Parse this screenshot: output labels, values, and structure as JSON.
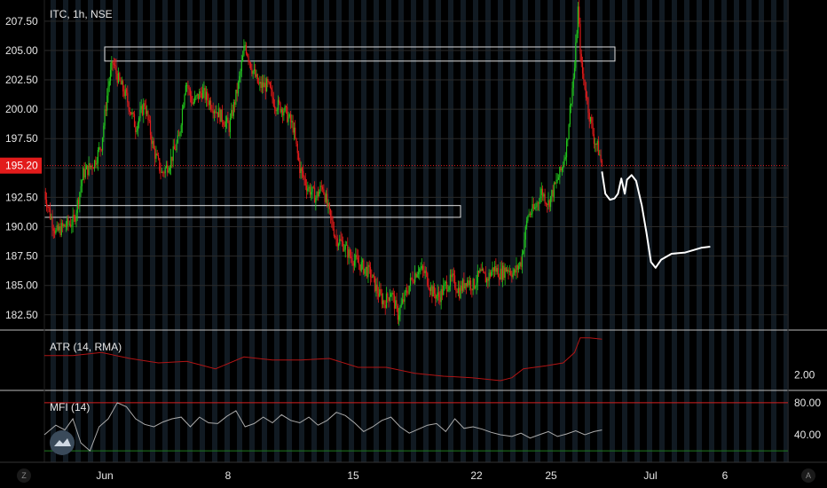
{
  "symbol": {
    "name": "ITC, 1h, NSE"
  },
  "price": {
    "last": "195.20",
    "last_value": 195.2
  },
  "axes": {
    "price_ticks": [
      207.5,
      205,
      202.5,
      200,
      197.5,
      195,
      192.5,
      190,
      187.5,
      185,
      182.5
    ],
    "price_tick_labels": [
      "207.50",
      "205.00",
      "202.50",
      "200.00",
      "197.50",
      "",
      "192.50",
      "190.00",
      "187.50",
      "185.00",
      "182.50"
    ],
    "price_range": [
      181.2,
      209.3
    ],
    "x_labels": [
      "Jun",
      "8",
      "15",
      "22",
      "25",
      "Jul",
      "6"
    ]
  },
  "indicators": {
    "atr": {
      "label": "ATR (14, RMA)",
      "tick_labels": [
        "2.00"
      ],
      "tick_values": [
        2.0
      ],
      "range": [
        1.3,
        4.6
      ]
    },
    "mfi": {
      "label": "MFI (14)",
      "tick_labels": [
        "80.00",
        "40.00"
      ],
      "tick_values": [
        80,
        40
      ],
      "range": [
        8,
        92
      ],
      "upper_band": 80,
      "lower_band": 20
    }
  },
  "zones": [
    {
      "name": "supply-zone",
      "from": 204.1,
      "to": 205.3
    },
    {
      "name": "demand-zone",
      "from": 190.8,
      "to": 191.8
    }
  ],
  "colors": {
    "up": "#22c41e",
    "down": "#e21b1b",
    "atr": "#b01515",
    "mfi": "#aaaaaa",
    "price_line": "#e21b1b",
    "upper_band": "#d42020",
    "lower_band": "#1f7a1f",
    "grid": "#2a2a2a",
    "separator": "#bbbbbb",
    "zone": "#dddddd"
  },
  "buttons": {
    "zoom": "Z",
    "auto": "A"
  },
  "chart_data": {
    "type": "candlestick",
    "title": "ITC, 1h, NSE",
    "ylim": [
      181.2,
      209.3
    ],
    "x": [
      "Jun",
      "8",
      "15",
      "22",
      "25",
      "Jul",
      "6"
    ],
    "price_path": [
      [
        0,
        193.0
      ],
      [
        5,
        191.0
      ],
      [
        10,
        189.5
      ],
      [
        17,
        190.0
      ],
      [
        26,
        190.5
      ],
      [
        34,
        194.5
      ],
      [
        44,
        195.5
      ],
      [
        50,
        197.0
      ],
      [
        56,
        202.0
      ],
      [
        60,
        204.0
      ],
      [
        65,
        202.5
      ],
      [
        72,
        201.0
      ],
      [
        80,
        198.5
      ],
      [
        88,
        200.5
      ],
      [
        96,
        196.5
      ],
      [
        103,
        194.5
      ],
      [
        110,
        195.5
      ],
      [
        118,
        197.5
      ],
      [
        124,
        202.5
      ],
      [
        130,
        200.5
      ],
      [
        138,
        201.5
      ],
      [
        146,
        200.5
      ],
      [
        154,
        199.5
      ],
      [
        162,
        198.5
      ],
      [
        170,
        202.0
      ],
      [
        176,
        205.5
      ],
      [
        182,
        203.5
      ],
      [
        188,
        202.0
      ],
      [
        196,
        202.0
      ],
      [
        202,
        200.5
      ],
      [
        210,
        200.0
      ],
      [
        218,
        198.5
      ],
      [
        224,
        195.0
      ],
      [
        230,
        193.5
      ],
      [
        238,
        192.5
      ],
      [
        244,
        193.5
      ],
      [
        250,
        191.0
      ],
      [
        256,
        189.0
      ],
      [
        262,
        188.5
      ],
      [
        268,
        187.5
      ],
      [
        274,
        187.0
      ],
      [
        280,
        186.5
      ],
      [
        286,
        186.0
      ],
      [
        292,
        184.5
      ],
      [
        298,
        183.5
      ],
      [
        304,
        184.5
      ],
      [
        310,
        182.5
      ],
      [
        316,
        184.0
      ],
      [
        322,
        185.5
      ],
      [
        328,
        186.5
      ],
      [
        334,
        186.0
      ],
      [
        340,
        184.5
      ],
      [
        346,
        184.0
      ],
      [
        352,
        185.0
      ],
      [
        358,
        185.5
      ],
      [
        364,
        184.5
      ],
      [
        370,
        185.5
      ],
      [
        376,
        185.0
      ],
      [
        382,
        186.0
      ],
      [
        388,
        185.5
      ],
      [
        394,
        186.5
      ],
      [
        400,
        186.0
      ],
      [
        406,
        186.5
      ],
      [
        412,
        186.0
      ],
      [
        418,
        187.0
      ],
      [
        424,
        191.0
      ],
      [
        430,
        191.5
      ],
      [
        436,
        193.0
      ],
      [
        442,
        192.0
      ],
      [
        448,
        193.5
      ],
      [
        454,
        195.0
      ],
      [
        458,
        197.0
      ],
      [
        462,
        201.0
      ],
      [
        465,
        203.5
      ],
      [
        468,
        208.5
      ],
      [
        471,
        203.5
      ],
      [
        474,
        202.0
      ],
      [
        478,
        199.5
      ],
      [
        482,
        197.5
      ],
      [
        486,
        196.5
      ],
      [
        489,
        195.2
      ]
    ],
    "projection_path": [
      [
        489,
        194.7
      ],
      [
        492,
        192.8
      ],
      [
        496,
        192.3
      ],
      [
        500,
        192.4
      ],
      [
        503,
        192.8
      ],
      [
        506,
        194.1
      ],
      [
        509,
        192.8
      ],
      [
        511,
        194.0
      ],
      [
        515,
        194.4
      ],
      [
        519,
        193.9
      ],
      [
        524,
        191.8
      ],
      [
        528,
        189.5
      ],
      [
        532,
        187.0
      ],
      [
        536,
        186.5
      ],
      [
        541,
        187.2
      ],
      [
        550,
        187.7
      ],
      [
        562,
        187.8
      ],
      [
        576,
        188.2
      ],
      [
        584,
        188.3
      ]
    ],
    "atr_series": [
      [
        0,
        3.3
      ],
      [
        25,
        3.3
      ],
      [
        50,
        3.5
      ],
      [
        75,
        3.1
      ],
      [
        100,
        2.8
      ],
      [
        125,
        2.9
      ],
      [
        150,
        2.4
      ],
      [
        175,
        3.2
      ],
      [
        200,
        3.0
      ],
      [
        225,
        3.0
      ],
      [
        250,
        3.1
      ],
      [
        275,
        2.5
      ],
      [
        300,
        2.5
      ],
      [
        325,
        2.1
      ],
      [
        350,
        1.9
      ],
      [
        375,
        1.8
      ],
      [
        400,
        1.6
      ],
      [
        410,
        1.8
      ],
      [
        420,
        2.4
      ],
      [
        440,
        2.6
      ],
      [
        455,
        2.8
      ],
      [
        465,
        3.5
      ],
      [
        470,
        4.5
      ],
      [
        478,
        4.5
      ],
      [
        489,
        4.4
      ]
    ],
    "mfi_series": [
      [
        0,
        40
      ],
      [
        10,
        52
      ],
      [
        18,
        46
      ],
      [
        25,
        60
      ],
      [
        32,
        30
      ],
      [
        40,
        20
      ],
      [
        48,
        50
      ],
      [
        56,
        60
      ],
      [
        64,
        80
      ],
      [
        72,
        75
      ],
      [
        80,
        60
      ],
      [
        88,
        53
      ],
      [
        96,
        50
      ],
      [
        104,
        56
      ],
      [
        112,
        60
      ],
      [
        120,
        62
      ],
      [
        128,
        50
      ],
      [
        136,
        62
      ],
      [
        144,
        55
      ],
      [
        152,
        54
      ],
      [
        160,
        63
      ],
      [
        168,
        70
      ],
      [
        176,
        50
      ],
      [
        184,
        54
      ],
      [
        192,
        62
      ],
      [
        200,
        55
      ],
      [
        208,
        65
      ],
      [
        216,
        58
      ],
      [
        224,
        55
      ],
      [
        232,
        62
      ],
      [
        240,
        52
      ],
      [
        248,
        58
      ],
      [
        256,
        68
      ],
      [
        264,
        64
      ],
      [
        272,
        55
      ],
      [
        280,
        44
      ],
      [
        288,
        50
      ],
      [
        296,
        58
      ],
      [
        304,
        62
      ],
      [
        312,
        50
      ],
      [
        320,
        42
      ],
      [
        328,
        47
      ],
      [
        336,
        52
      ],
      [
        344,
        54
      ],
      [
        352,
        44
      ],
      [
        360,
        60
      ],
      [
        368,
        48
      ],
      [
        376,
        50
      ],
      [
        384,
        47
      ],
      [
        392,
        43
      ],
      [
        400,
        40
      ],
      [
        410,
        38
      ],
      [
        418,
        42
      ],
      [
        426,
        36
      ],
      [
        434,
        40
      ],
      [
        442,
        44
      ],
      [
        450,
        38
      ],
      [
        458,
        41
      ],
      [
        466,
        45
      ],
      [
        474,
        40
      ],
      [
        482,
        44
      ],
      [
        489,
        46
      ]
    ]
  }
}
